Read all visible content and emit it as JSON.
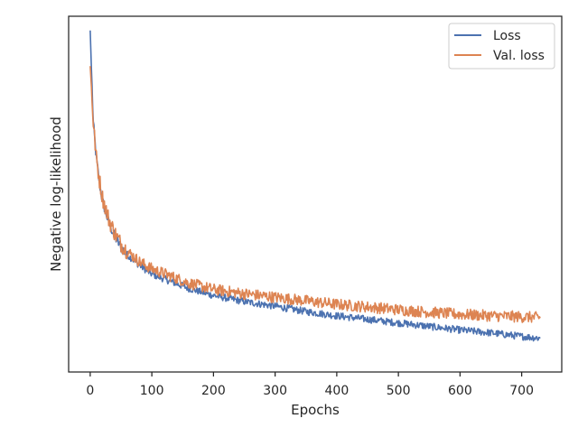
{
  "chart_data": {
    "type": "line",
    "title": "",
    "xlabel": "Epochs",
    "ylabel": "Negative log-likelihood",
    "xlim": [
      -35,
      765
    ],
    "ylim": [
      0.0,
      1.0
    ],
    "x_ticks": [
      0,
      100,
      200,
      300,
      400,
      500,
      600,
      700
    ],
    "x_tick_labels": [
      "0",
      "100",
      "200",
      "300",
      "400",
      "500",
      "600",
      "700"
    ],
    "y_ticks_labeled": false,
    "grid": false,
    "legend": "top-right",
    "series": [
      {
        "name": "Loss",
        "color": "#4c72b0",
        "x": [
          0,
          2,
          5,
          10,
          15,
          20,
          30,
          40,
          50,
          60,
          80,
          100,
          130,
          160,
          200,
          250,
          300,
          350,
          400,
          450,
          500,
          550,
          600,
          650,
          700,
          730
        ],
        "y": [
          0.96,
          0.85,
          0.7,
          0.6,
          0.53,
          0.48,
          0.42,
          0.38,
          0.35,
          0.33,
          0.3,
          0.275,
          0.255,
          0.235,
          0.215,
          0.198,
          0.185,
          0.17,
          0.158,
          0.148,
          0.138,
          0.128,
          0.118,
          0.11,
          0.1,
          0.095
        ],
        "noise": 0.01
      },
      {
        "name": "Val. loss",
        "color": "#dd8452",
        "x": [
          0,
          2,
          5,
          10,
          15,
          20,
          30,
          40,
          50,
          60,
          80,
          100,
          130,
          160,
          200,
          250,
          300,
          350,
          400,
          450,
          500,
          550,
          600,
          650,
          700,
          730
        ],
        "y": [
          0.86,
          0.8,
          0.7,
          0.6,
          0.54,
          0.49,
          0.43,
          0.39,
          0.36,
          0.34,
          0.31,
          0.29,
          0.27,
          0.25,
          0.232,
          0.22,
          0.21,
          0.2,
          0.19,
          0.183,
          0.175,
          0.168,
          0.162,
          0.158,
          0.155,
          0.153
        ],
        "noise": 0.016
      }
    ]
  }
}
